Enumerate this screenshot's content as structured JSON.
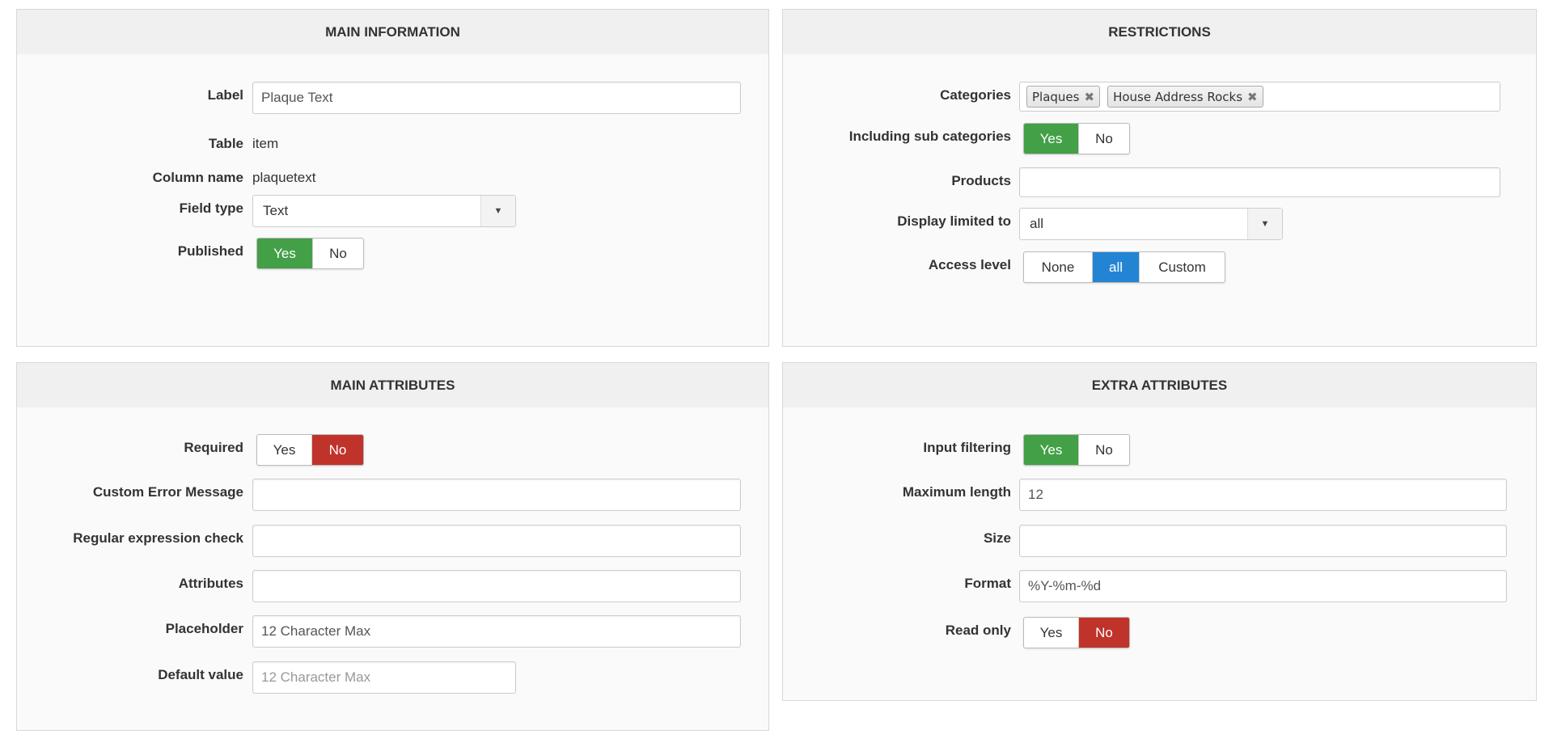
{
  "main_information": {
    "title": "MAIN INFORMATION",
    "label": {
      "label": "Label",
      "value": "Plaque Text"
    },
    "table": {
      "label": "Table",
      "value": "item"
    },
    "column_name": {
      "label": "Column name",
      "value": "plaquetext"
    },
    "field_type": {
      "label": "Field type",
      "value": "Text",
      "icon": "caret-down-icon"
    },
    "published": {
      "label": "Published",
      "options": [
        "Yes",
        "No"
      ],
      "selected": "Yes"
    }
  },
  "restrictions": {
    "title": "RESTRICTIONS",
    "categories": {
      "label": "Categories",
      "chips": [
        "Plaques",
        "House Address Rocks"
      ],
      "remove_glyph": "✖"
    },
    "including_sub": {
      "label": "Including sub categories",
      "options": [
        "Yes",
        "No"
      ],
      "selected": "Yes"
    },
    "products": {
      "label": "Products",
      "value": ""
    },
    "display_limited": {
      "label": "Display limited to",
      "value": "all"
    },
    "access_level": {
      "label": "Access level",
      "options": [
        "None",
        "all",
        "Custom"
      ],
      "selected": "all"
    }
  },
  "main_attributes": {
    "title": "MAIN ATTRIBUTES",
    "required": {
      "label": "Required",
      "options": [
        "Yes",
        "No"
      ],
      "selected": "No"
    },
    "custom_error": {
      "label": "Custom Error Message",
      "value": ""
    },
    "regex": {
      "label": "Regular expression check",
      "value": ""
    },
    "attributes": {
      "label": "Attributes",
      "value": ""
    },
    "placeholder": {
      "label": "Placeholder",
      "value": "12 Character Max"
    },
    "default_value": {
      "label": "Default value",
      "value": "",
      "placeholder": "12 Character Max"
    }
  },
  "extra_attributes": {
    "title": "EXTRA ATTRIBUTES",
    "input_filtering": {
      "label": "Input filtering",
      "options": [
        "Yes",
        "No"
      ],
      "selected": "Yes"
    },
    "max_length": {
      "label": "Maximum length",
      "value": "12"
    },
    "size": {
      "label": "Size",
      "value": ""
    },
    "format": {
      "label": "Format",
      "value": "%Y-%m-%d"
    },
    "read_only": {
      "label": "Read only",
      "options": [
        "Yes",
        "No"
      ],
      "selected": "No"
    }
  },
  "colors": {
    "yes_active": "#43a047",
    "no_active": "#c0332b",
    "selected_blue": "#2384d3"
  }
}
